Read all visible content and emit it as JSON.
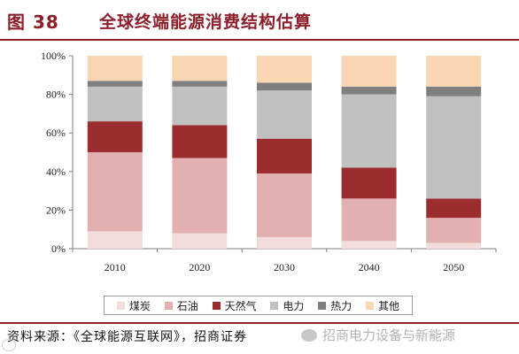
{
  "header": {
    "figure_number": "图 38",
    "title": "全球终端能源消费结构估算"
  },
  "source": "资料来源：《全球能源互联网》，招商证券",
  "watermark": "招商电力设备与新能源",
  "chart_data": {
    "type": "bar",
    "stacked": true,
    "percent": true,
    "categories": [
      "2010",
      "2020",
      "2030",
      "2040",
      "2050"
    ],
    "ylim": [
      0,
      100
    ],
    "yticks": [
      0,
      20,
      40,
      60,
      80,
      100
    ],
    "ytick_labels": [
      "0%",
      "20%",
      "40%",
      "60%",
      "80%",
      "100%"
    ],
    "grid": false,
    "legend_position": "bottom",
    "series": [
      {
        "name": "煤炭",
        "color": "#f2dcdc",
        "values": [
          9,
          8,
          6,
          4,
          3
        ]
      },
      {
        "name": "石油",
        "color": "#e3b0b1",
        "values": [
          41,
          39,
          33,
          22,
          13
        ]
      },
      {
        "name": "天然气",
        "color": "#9c2d2f",
        "values": [
          16,
          17,
          18,
          16,
          10
        ]
      },
      {
        "name": "电力",
        "color": "#c0c0c0",
        "values": [
          18,
          20,
          25,
          38,
          53
        ]
      },
      {
        "name": "热力",
        "color": "#7f7f7f",
        "values": [
          3,
          3,
          4,
          4,
          5
        ]
      },
      {
        "name": "其他",
        "color": "#f9d6b3",
        "values": [
          13,
          13,
          14,
          16,
          16
        ]
      }
    ]
  }
}
